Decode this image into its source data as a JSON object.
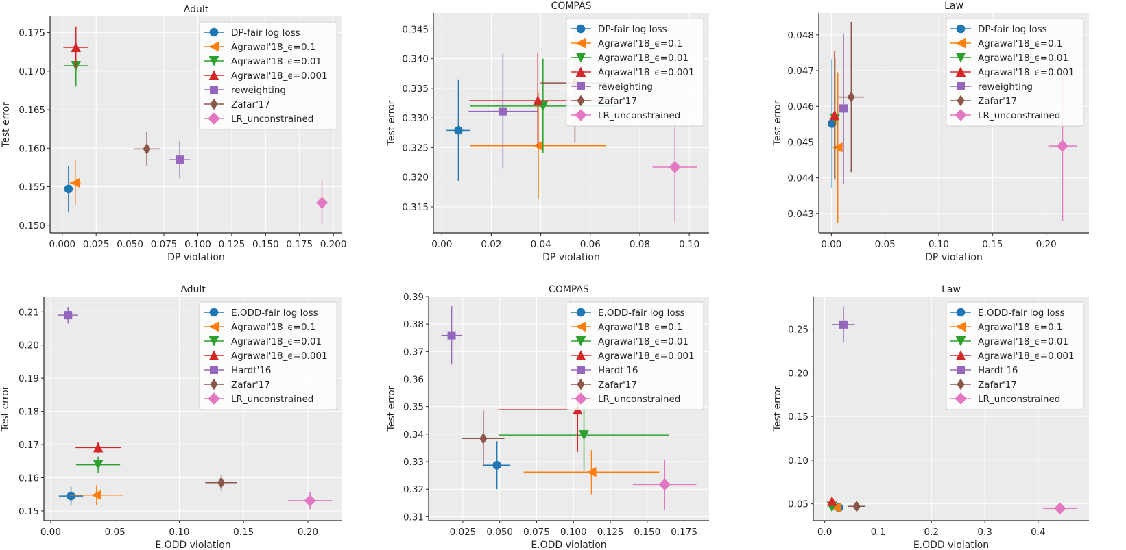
{
  "colors": {
    "background": "#ebebeb",
    "grid": "#ffffff",
    "axis": "#262626"
  },
  "chart_data": [
    {
      "type": "scatter",
      "title": "Adult",
      "xlabel": "DP violation",
      "ylabel": "Test error",
      "xlim": [
        -0.009,
        0.2065
      ],
      "ylim": [
        0.149,
        0.1771
      ],
      "grid": true,
      "legend": "upper-right",
      "xticks": [
        "0.000",
        "0.025",
        "0.050",
        "0.075",
        "0.100",
        "0.125",
        "0.150",
        "0.175",
        "0.200"
      ],
      "yticks": [
        "0.150",
        "0.155",
        "0.160",
        "0.165",
        "0.170",
        "0.175"
      ],
      "series": [
        {
          "name": "DP-fair log loss",
          "color": "#1f77b4",
          "marker": "circle",
          "x": 0.0046,
          "y": 0.1547,
          "xerr": 0.001,
          "yerr": 0.003
        },
        {
          "name": "Agrawal'18_ϵ=0.1",
          "color": "#ff7f0e",
          "marker": "triangle-left",
          "x": 0.0096,
          "y": 0.1555,
          "xerr": 0.004,
          "yerr": 0.0029
        },
        {
          "name": "Agrawal'18_ϵ=0.01",
          "color": "#2ca02c",
          "marker": "triangle-down",
          "x": 0.0101,
          "y": 0.1707,
          "xerr": 0.0086,
          "yerr": 0.0027
        },
        {
          "name": "Agrawal'18_ϵ=0.001",
          "color": "#d62728",
          "marker": "triangle-up",
          "x": 0.0101,
          "y": 0.1731,
          "xerr": 0.0093,
          "yerr": 0.0027
        },
        {
          "name": "reweighting",
          "color": "#9467bd",
          "marker": "square",
          "x": 0.0867,
          "y": 0.1585,
          "xerr": 0.0075,
          "yerr": 0.0024
        },
        {
          "name": "Zafar'17",
          "color": "#8c564b",
          "marker": "thin-diamond",
          "x": 0.0624,
          "y": 0.1599,
          "xerr": 0.0096,
          "yerr": 0.0022
        },
        {
          "name": "LR_unconstrained",
          "color": "#e377c2",
          "marker": "diamond",
          "x": 0.1916,
          "y": 0.1529,
          "xerr": 0.001,
          "yerr": 0.0029
        }
      ]
    },
    {
      "type": "scatter",
      "title": "COMPAS",
      "xlabel": "DP violation",
      "ylabel": "Test error",
      "xlim": [
        -0.0034,
        0.108
      ],
      "ylim": [
        0.3106,
        0.3477
      ],
      "grid": true,
      "legend": "upper-right",
      "xticks": [
        "0.00",
        "0.02",
        "0.04",
        "0.06",
        "0.08",
        "0.10"
      ],
      "yticks": [
        "0.315",
        "0.320",
        "0.325",
        "0.330",
        "0.335",
        "0.340",
        "0.345"
      ],
      "series": [
        {
          "name": "DP-fair log loss",
          "color": "#1f77b4",
          "marker": "circle",
          "x": 0.0067,
          "y": 0.3279,
          "xerr": 0.0048,
          "yerr": 0.0085
        },
        {
          "name": "Agrawal'18_ϵ=0.1",
          "color": "#ff7f0e",
          "marker": "triangle-left",
          "x": 0.039,
          "y": 0.3253,
          "xerr": 0.0274,
          "yerr": 0.0089
        },
        {
          "name": "Agrawal'18_ϵ=0.01",
          "color": "#2ca02c",
          "marker": "triangle-down",
          "x": 0.0409,
          "y": 0.332,
          "xerr": 0.0295,
          "yerr": 0.008
        },
        {
          "name": "Agrawal'18_ϵ=0.001",
          "color": "#d62728",
          "marker": "triangle-up",
          "x": 0.0388,
          "y": 0.3329,
          "xerr": 0.0277,
          "yerr": 0.008
        },
        {
          "name": "reweighting",
          "color": "#9467bd",
          "marker": "square",
          "x": 0.0247,
          "y": 0.3311,
          "xerr": 0.0139,
          "yerr": 0.0097
        },
        {
          "name": "Zafar'17",
          "color": "#8c564b",
          "marker": "thin-diamond",
          "x": 0.0538,
          "y": 0.3359,
          "xerr": 0.0139,
          "yerr": 0.0101
        },
        {
          "name": "LR_unconstrained",
          "color": "#e377c2",
          "marker": "diamond",
          "x": 0.0942,
          "y": 0.3217,
          "xerr": 0.009,
          "yerr": 0.0093
        }
      ]
    },
    {
      "type": "scatter",
      "title": "Law",
      "xlabel": "DP violation",
      "ylabel": "Test error",
      "xlim": [
        -0.0117,
        0.2398
      ],
      "ylim": [
        0.04246,
        0.04861
      ],
      "grid": true,
      "legend": "upper-right",
      "xticks": [
        "0.00",
        "0.05",
        "0.10",
        "0.15",
        "0.20"
      ],
      "yticks": [
        "0.043",
        "0.044",
        "0.045",
        "0.046",
        "0.047",
        "0.048"
      ],
      "series": [
        {
          "name": "DP-fair log loss",
          "color": "#1f77b4",
          "marker": "circle",
          "x": 0.0006,
          "y": 0.04552,
          "xerr": 0.001,
          "yerr": 0.0018
        },
        {
          "name": "Agrawal'18_ϵ=0.1",
          "color": "#ff7f0e",
          "marker": "triangle-left",
          "x": 0.006,
          "y": 0.04485,
          "xerr": 0.001,
          "yerr": 0.0021
        },
        {
          "name": "Agrawal'18_ϵ=0.01",
          "color": "#2ca02c",
          "marker": "triangle-down",
          "x": 0.0034,
          "y": 0.04565,
          "xerr": 0.001,
          "yerr": 0.0017
        },
        {
          "name": "Agrawal'18_ϵ=0.001",
          "color": "#d62728",
          "marker": "triangle-up",
          "x": 0.003,
          "y": 0.04575,
          "xerr": 0.001,
          "yerr": 0.0018
        },
        {
          "name": "reweighting",
          "color": "#9467bd",
          "marker": "square",
          "x": 0.0113,
          "y": 0.04594,
          "xerr": 0.003,
          "yerr": 0.0021
        },
        {
          "name": "Zafar'17",
          "color": "#8c564b",
          "marker": "thin-diamond",
          "x": 0.0185,
          "y": 0.04626,
          "xerr": 0.012,
          "yerr": 0.0021
        },
        {
          "name": "LR_unconstrained",
          "color": "#e377c2",
          "marker": "diamond",
          "x": 0.2152,
          "y": 0.04489,
          "xerr": 0.0133,
          "yerr": 0.0021
        }
      ]
    },
    {
      "type": "scatter",
      "title": "Adult",
      "xlabel": "E.ODD violation",
      "ylabel": "Test error",
      "xlim": [
        -0.0053,
        0.2267
      ],
      "ylim": [
        0.1471,
        0.2146
      ],
      "grid": true,
      "legend": "upper-right",
      "xticks": [
        "0.00",
        "0.05",
        "0.10",
        "0.15",
        "0.20"
      ],
      "yticks": [
        "0.15",
        "0.16",
        "0.17",
        "0.18",
        "0.19",
        "0.20",
        "0.21"
      ],
      "series": [
        {
          "name": "E.ODD-fair log loss",
          "color": "#1f77b4",
          "marker": "circle",
          "x": 0.0158,
          "y": 0.1545,
          "xerr": 0.0094,
          "yerr": 0.0028
        },
        {
          "name": "Agrawal'18_ϵ=0.1",
          "color": "#ff7f0e",
          "marker": "triangle-left",
          "x": 0.0357,
          "y": 0.1548,
          "xerr": 0.0208,
          "yerr": 0.003
        },
        {
          "name": "Agrawal'18_ϵ=0.01",
          "color": "#2ca02c",
          "marker": "triangle-down",
          "x": 0.0369,
          "y": 0.1639,
          "xerr": 0.0171,
          "yerr": 0.0025
        },
        {
          "name": "Agrawal'18_ϵ=0.001",
          "color": "#d62728",
          "marker": "triangle-up",
          "x": 0.0369,
          "y": 0.1691,
          "xerr": 0.0176,
          "yerr": 0.0017
        },
        {
          "name": "Hardt'16",
          "color": "#9467bd",
          "marker": "square",
          "x": 0.0135,
          "y": 0.209,
          "xerr": 0.0078,
          "yerr": 0.0025
        },
        {
          "name": "Zafar'17",
          "color": "#8c564b",
          "marker": "thin-diamond",
          "x": 0.1326,
          "y": 0.1585,
          "xerr": 0.0124,
          "yerr": 0.0025
        },
        {
          "name": "LR_unconstrained",
          "color": "#e377c2",
          "marker": "diamond",
          "x": 0.2017,
          "y": 0.1531,
          "xerr": 0.0169,
          "yerr": 0.0026
        }
      ]
    },
    {
      "type": "scatter",
      "title": "COMPAS",
      "xlabel": "E.ODD violation",
      "ylabel": "Test error",
      "xlim": [
        0.0018,
        0.1919
      ],
      "ylim": [
        0.3086,
        0.39
      ],
      "grid": true,
      "legend": "upper-right",
      "xticks": [
        "0.025",
        "0.050",
        "0.075",
        "0.100",
        "0.125",
        "0.150",
        "0.175"
      ],
      "yticks": [
        "0.31",
        "0.32",
        "0.33",
        "0.34",
        "0.35",
        "0.36",
        "0.37",
        "0.38",
        "0.39"
      ],
      "series": [
        {
          "name": "E.ODD-fair log loss",
          "color": "#1f77b4",
          "marker": "circle",
          "x": 0.0481,
          "y": 0.3287,
          "xerr": 0.0091,
          "yerr": 0.0087
        },
        {
          "name": "Agrawal'18_ϵ=0.1",
          "color": "#ff7f0e",
          "marker": "triangle-left",
          "x": 0.1122,
          "y": 0.3262,
          "xerr": 0.046,
          "yerr": 0.008
        },
        {
          "name": "Agrawal'18_ϵ=0.01",
          "color": "#2ca02c",
          "marker": "triangle-down",
          "x": 0.1071,
          "y": 0.3397,
          "xerr": 0.0575,
          "yerr": 0.0128
        },
        {
          "name": "Agrawal'18_ϵ=0.001",
          "color": "#d62728",
          "marker": "triangle-up",
          "x": 0.1028,
          "y": 0.3489,
          "xerr": 0.0538,
          "yerr": 0.0154
        },
        {
          "name": "Hardt'16",
          "color": "#9467bd",
          "marker": "square",
          "x": 0.0174,
          "y": 0.3759,
          "xerr": 0.007,
          "yerr": 0.0106
        },
        {
          "name": "Zafar'17",
          "color": "#8c564b",
          "marker": "thin-diamond",
          "x": 0.0389,
          "y": 0.3384,
          "xerr": 0.0143,
          "yerr": 0.0102
        },
        {
          "name": "LR_unconstrained",
          "color": "#e377c2",
          "marker": "diamond",
          "x": 0.1618,
          "y": 0.3217,
          "xerr": 0.0215,
          "yerr": 0.0091
        }
      ]
    },
    {
      "type": "scatter",
      "title": "Law",
      "xlabel": "E.ODD violation",
      "ylabel": "Test error",
      "xlim": [
        -0.0214,
        0.4952
      ],
      "ylim": [
        0.0309,
        0.2874
      ],
      "grid": true,
      "legend": "upper-right",
      "xticks": [
        "0.0",
        "0.1",
        "0.2",
        "0.3",
        "0.4"
      ],
      "yticks": [
        "0.05",
        "0.10",
        "0.15",
        "0.20",
        "0.25"
      ],
      "series": [
        {
          "name": "E.ODD-fair log loss",
          "color": "#1f77b4",
          "marker": "circle",
          "x": 0.0265,
          "y": 0.0458,
          "xerr": 0.004,
          "yerr": 0.002
        },
        {
          "name": "Agrawal'18_ϵ=0.1",
          "color": "#ff7f0e",
          "marker": "triangle-left",
          "x": 0.021,
          "y": 0.0457,
          "xerr": 0.006,
          "yerr": 0.002
        },
        {
          "name": "Agrawal'18_ϵ=0.01",
          "color": "#2ca02c",
          "marker": "triangle-down",
          "x": 0.0136,
          "y": 0.0466,
          "xerr": 0.006,
          "yerr": 0.002
        },
        {
          "name": "Agrawal'18_ϵ=0.001",
          "color": "#d62728",
          "marker": "triangle-up",
          "x": 0.0136,
          "y": 0.0531,
          "xerr": 0.01,
          "yerr": 0.003
        },
        {
          "name": "Hardt'16",
          "color": "#9467bd",
          "marker": "square",
          "x": 0.0351,
          "y": 0.2553,
          "xerr": 0.021,
          "yerr": 0.0206
        },
        {
          "name": "Zafar'17",
          "color": "#8c564b",
          "marker": "thin-diamond",
          "x": 0.0599,
          "y": 0.0472,
          "xerr": 0.0165,
          "yerr": 0.003
        },
        {
          "name": "LR_unconstrained",
          "color": "#e377c2",
          "marker": "diamond",
          "x": 0.4409,
          "y": 0.0448,
          "xerr": 0.0317,
          "yerr": 0.002
        }
      ]
    }
  ]
}
